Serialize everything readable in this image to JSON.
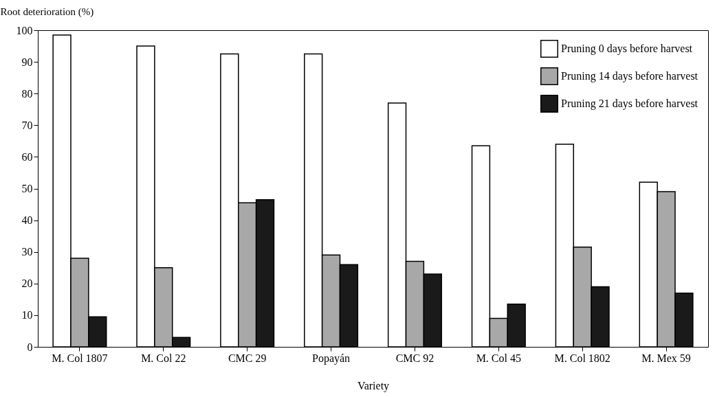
{
  "chart_data": {
    "type": "bar",
    "xlabel": "Variety",
    "ylabel": "Root deterioration (%)",
    "categories": [
      "M. Col 1807",
      "M. Col 22",
      "CMC 29",
      "Popayán",
      "CMC 92",
      "M. Col 45",
      "M. Col 1802",
      "M. Mex 59"
    ],
    "series": [
      {
        "name": "Pruning 0 days before harvest",
        "color": "#ffffff",
        "values": [
          98.5,
          95,
          92.5,
          92.5,
          77,
          63.5,
          64,
          52
        ]
      },
      {
        "name": "Pruning 14 days before harvest",
        "color": "#a8a8a8",
        "values": [
          28,
          25,
          45.5,
          29,
          27,
          9,
          31.5,
          49
        ]
      },
      {
        "name": "Pruning 21 days before harvest",
        "color": "#1a1a1a",
        "values": [
          9.5,
          3,
          46.5,
          26,
          23,
          13.5,
          19,
          17
        ]
      }
    ],
    "ylim": [
      0,
      100
    ],
    "yticks": [
      0,
      10,
      20,
      30,
      40,
      50,
      60,
      70,
      80,
      90,
      100
    ],
    "legend": "top right"
  }
}
